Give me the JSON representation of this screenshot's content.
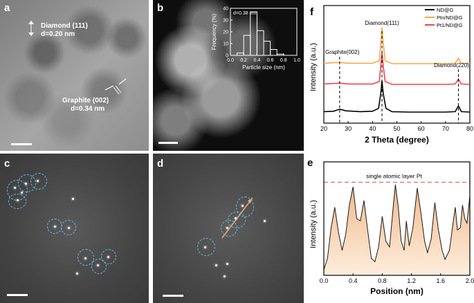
{
  "panels": {
    "a": {
      "letter": "a",
      "diamond_label": "Diamond (111)",
      "diamond_d": "d=0.20 nm",
      "graphite_label": "Graphite (002)",
      "graphite_d": "d=0.34 nm"
    },
    "b": {
      "letter": "b"
    },
    "c": {
      "letter": "c"
    },
    "d": {
      "letter": "d"
    },
    "e": {
      "letter": "e"
    },
    "f": {
      "letter": "f"
    }
  },
  "chart_data": [
    {
      "panel": "b-inset",
      "type": "bar",
      "annotation": "d=0.38 nm",
      "xlabel": "Particle size (nm)",
      "ylabel": "Frequency (%)",
      "xlim": [
        0.0,
        1.0
      ],
      "ylim": [
        0,
        40
      ],
      "xticks": [
        "0.0",
        "0.2",
        "0.4",
        "0.6",
        "0.8",
        "1.0"
      ],
      "yticks": [
        "0",
        "10",
        "20",
        "30",
        "40"
      ],
      "bins": [
        {
          "x0": 0.1,
          "x1": 0.2,
          "value": 2
        },
        {
          "x0": 0.2,
          "x1": 0.3,
          "value": 17
        },
        {
          "x0": 0.3,
          "x1": 0.4,
          "value": 37
        },
        {
          "x0": 0.4,
          "x1": 0.5,
          "value": 21
        },
        {
          "x0": 0.5,
          "x1": 0.6,
          "value": 12
        },
        {
          "x0": 0.6,
          "x1": 0.7,
          "value": 5
        },
        {
          "x0": 0.7,
          "x1": 0.8,
          "value": 1
        }
      ]
    },
    {
      "panel": "f",
      "type": "line",
      "xlabel": "2 Theta (degree)",
      "ylabel": "Intensity (a.u.)",
      "xlim": [
        20,
        80
      ],
      "xticks": [
        "20",
        "30",
        "40",
        "50",
        "60",
        "70",
        "80"
      ],
      "grid": false,
      "legend_position": "top-right",
      "annotations": [
        {
          "text": "Graphite(002)",
          "x": 26.5
        },
        {
          "text": "Diamond(111)",
          "x": 43.9
        },
        {
          "text": "Diamond(220)",
          "x": 75.3
        }
      ],
      "series": [
        {
          "name": "ND@G",
          "color": "#000000",
          "offset": 0.0,
          "points": [
            [
              20,
              0.06
            ],
            [
              24,
              0.07
            ],
            [
              26.5,
              0.12
            ],
            [
              29,
              0.08
            ],
            [
              35,
              0.06
            ],
            [
              40,
              0.07
            ],
            [
              42.5,
              0.14
            ],
            [
              43.4,
              0.5
            ],
            [
              43.9,
              0.8
            ],
            [
              44.4,
              0.5
            ],
            [
              45.5,
              0.14
            ],
            [
              48,
              0.06
            ],
            [
              55,
              0.05
            ],
            [
              60,
              0.05
            ],
            [
              70,
              0.05
            ],
            [
              74,
              0.06
            ],
            [
              75.3,
              0.2
            ],
            [
              76.5,
              0.06
            ],
            [
              80,
              0.05
            ]
          ]
        },
        {
          "name": "Pt1/ND@G",
          "color": "#e8484d",
          "offset": 1.0,
          "points": [
            [
              20,
              0.06
            ],
            [
              26.5,
              0.08
            ],
            [
              30,
              0.06
            ],
            [
              40,
              0.06
            ],
            [
              42.8,
              0.12
            ],
            [
              43.4,
              0.5
            ],
            [
              43.9,
              0.82
            ],
            [
              44.4,
              0.5
            ],
            [
              45.2,
              0.12
            ],
            [
              48,
              0.05
            ],
            [
              60,
              0.05
            ],
            [
              70,
              0.05
            ],
            [
              74,
              0.06
            ],
            [
              75.3,
              0.18
            ],
            [
              76.4,
              0.06
            ],
            [
              80,
              0.05
            ]
          ]
        },
        {
          "name": "Ptn/ND@G",
          "color": "#f0ac4e",
          "offset": 2.0,
          "points": [
            [
              20,
              0.06
            ],
            [
              26.5,
              0.08
            ],
            [
              30,
              0.06
            ],
            [
              40,
              0.06
            ],
            [
              42.8,
              0.12
            ],
            [
              43.4,
              0.55
            ],
            [
              43.9,
              0.92
            ],
            [
              44.4,
              0.55
            ],
            [
              45.2,
              0.12
            ],
            [
              48,
              0.05
            ],
            [
              60,
              0.05
            ],
            [
              70,
              0.05
            ],
            [
              74,
              0.06
            ],
            [
              75.3,
              0.18
            ],
            [
              76.4,
              0.06
            ],
            [
              80,
              0.05
            ]
          ]
        }
      ]
    },
    {
      "panel": "e",
      "type": "area",
      "xlabel": "Position (nm)",
      "ylabel": "Intensity (a.u.)",
      "xlim": [
        0.0,
        2.0
      ],
      "ylim": [
        0,
        1.0
      ],
      "xticks": [
        "0.0",
        "0.4",
        "0.8",
        "1.2",
        "1.6",
        "2.0"
      ],
      "fill_color": "#f2b98a",
      "reference_line": {
        "text": "single atomic layer Pt",
        "y": 0.82,
        "color": "#e8778a"
      },
      "points": [
        [
          0,
          0.05
        ],
        [
          0.05,
          0.15
        ],
        [
          0.1,
          0.42
        ],
        [
          0.15,
          0.6
        ],
        [
          0.2,
          0.38
        ],
        [
          0.25,
          0.22
        ],
        [
          0.3,
          0.36
        ],
        [
          0.35,
          0.62
        ],
        [
          0.4,
          0.78
        ],
        [
          0.45,
          0.5
        ],
        [
          0.5,
          0.48
        ],
        [
          0.55,
          0.66
        ],
        [
          0.6,
          0.4
        ],
        [
          0.65,
          0.15
        ],
        [
          0.7,
          0.12
        ],
        [
          0.75,
          0.25
        ],
        [
          0.8,
          0.52
        ],
        [
          0.85,
          0.3
        ],
        [
          0.9,
          0.25
        ],
        [
          0.95,
          0.6
        ],
        [
          0.98,
          0.8
        ],
        [
          1.02,
          0.6
        ],
        [
          1.06,
          0.3
        ],
        [
          1.1,
          0.22
        ],
        [
          1.13,
          0.48
        ],
        [
          1.17,
          0.26
        ],
        [
          1.22,
          0.42
        ],
        [
          1.28,
          0.77
        ],
        [
          1.33,
          0.55
        ],
        [
          1.38,
          0.3
        ],
        [
          1.42,
          0.2
        ],
        [
          1.47,
          0.32
        ],
        [
          1.52,
          0.64
        ],
        [
          1.57,
          0.4
        ],
        [
          1.62,
          0.22
        ],
        [
          1.66,
          0.14
        ],
        [
          1.72,
          0.22
        ],
        [
          1.77,
          0.46
        ],
        [
          1.8,
          0.6
        ],
        [
          1.83,
          0.4
        ],
        [
          1.87,
          0.42
        ],
        [
          1.9,
          0.62
        ],
        [
          1.93,
          0.5
        ],
        [
          1.96,
          0.46
        ],
        [
          2.0,
          0.7
        ]
      ]
    }
  ]
}
